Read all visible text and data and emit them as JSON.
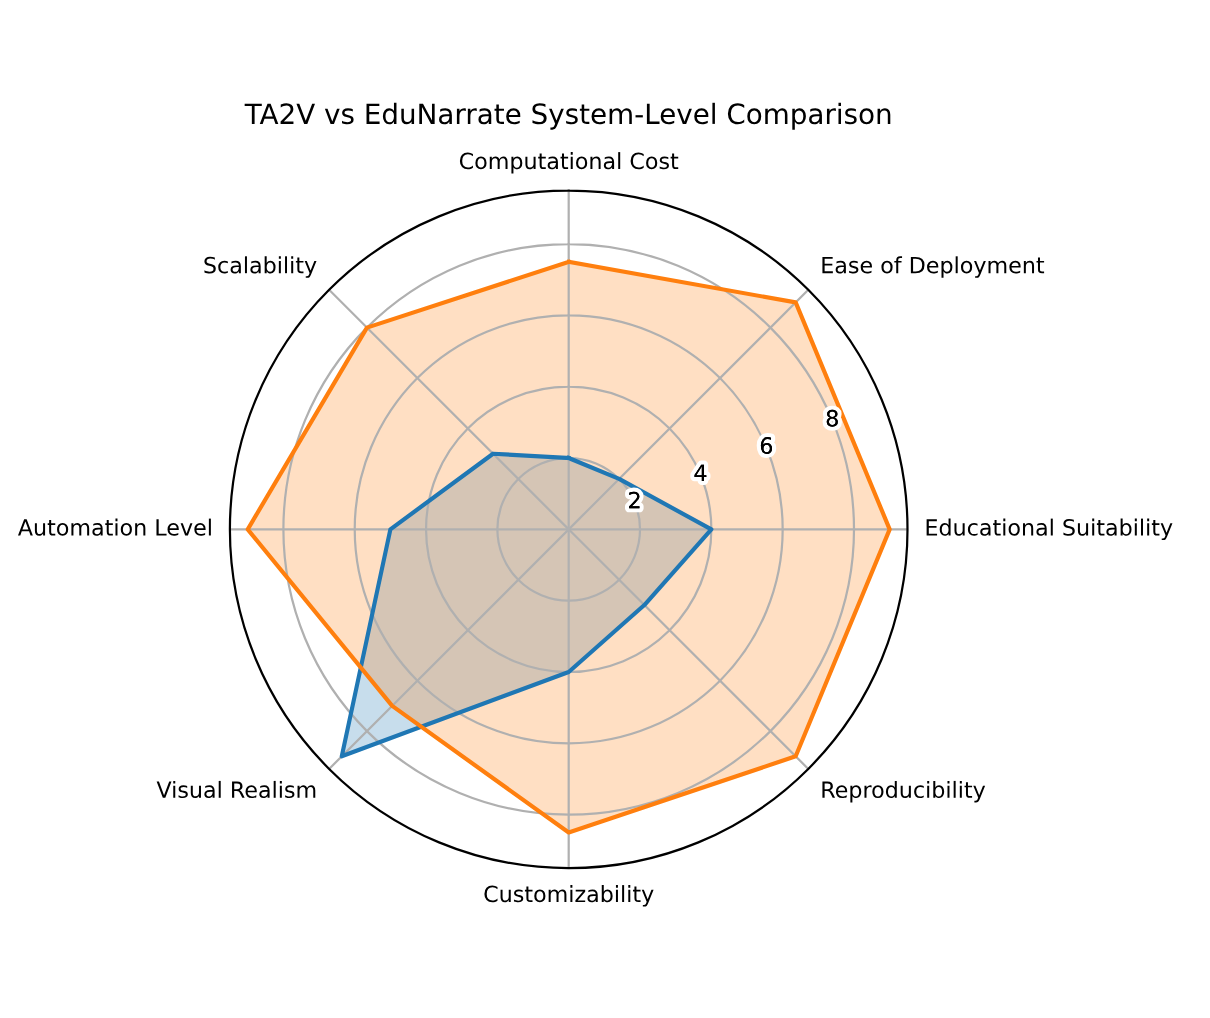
{
  "chart_data": {
    "type": "radar",
    "title": "TA2V vs EduNarrate System-Level Comparison",
    "categories": [
      "Computational Cost",
      "Ease of Deployment",
      "Educational Suitability",
      "Reproducibility",
      "Customizability",
      "Visual Realism",
      "Automation Level",
      "Scalability"
    ],
    "series": [
      {
        "color": "#1f77b4",
        "values": [
          2,
          2,
          4,
          3,
          4,
          9,
          5,
          3
        ]
      },
      {
        "color": "#ff7f0e",
        "values": [
          7.5,
          9,
          9,
          9,
          8.5,
          7,
          9,
          8
        ]
      }
    ],
    "ylim": [
      0,
      9.5
    ],
    "yticks": [
      2,
      4,
      6,
      8
    ],
    "grid": true,
    "marker": "none",
    "line_style": "solid"
  }
}
